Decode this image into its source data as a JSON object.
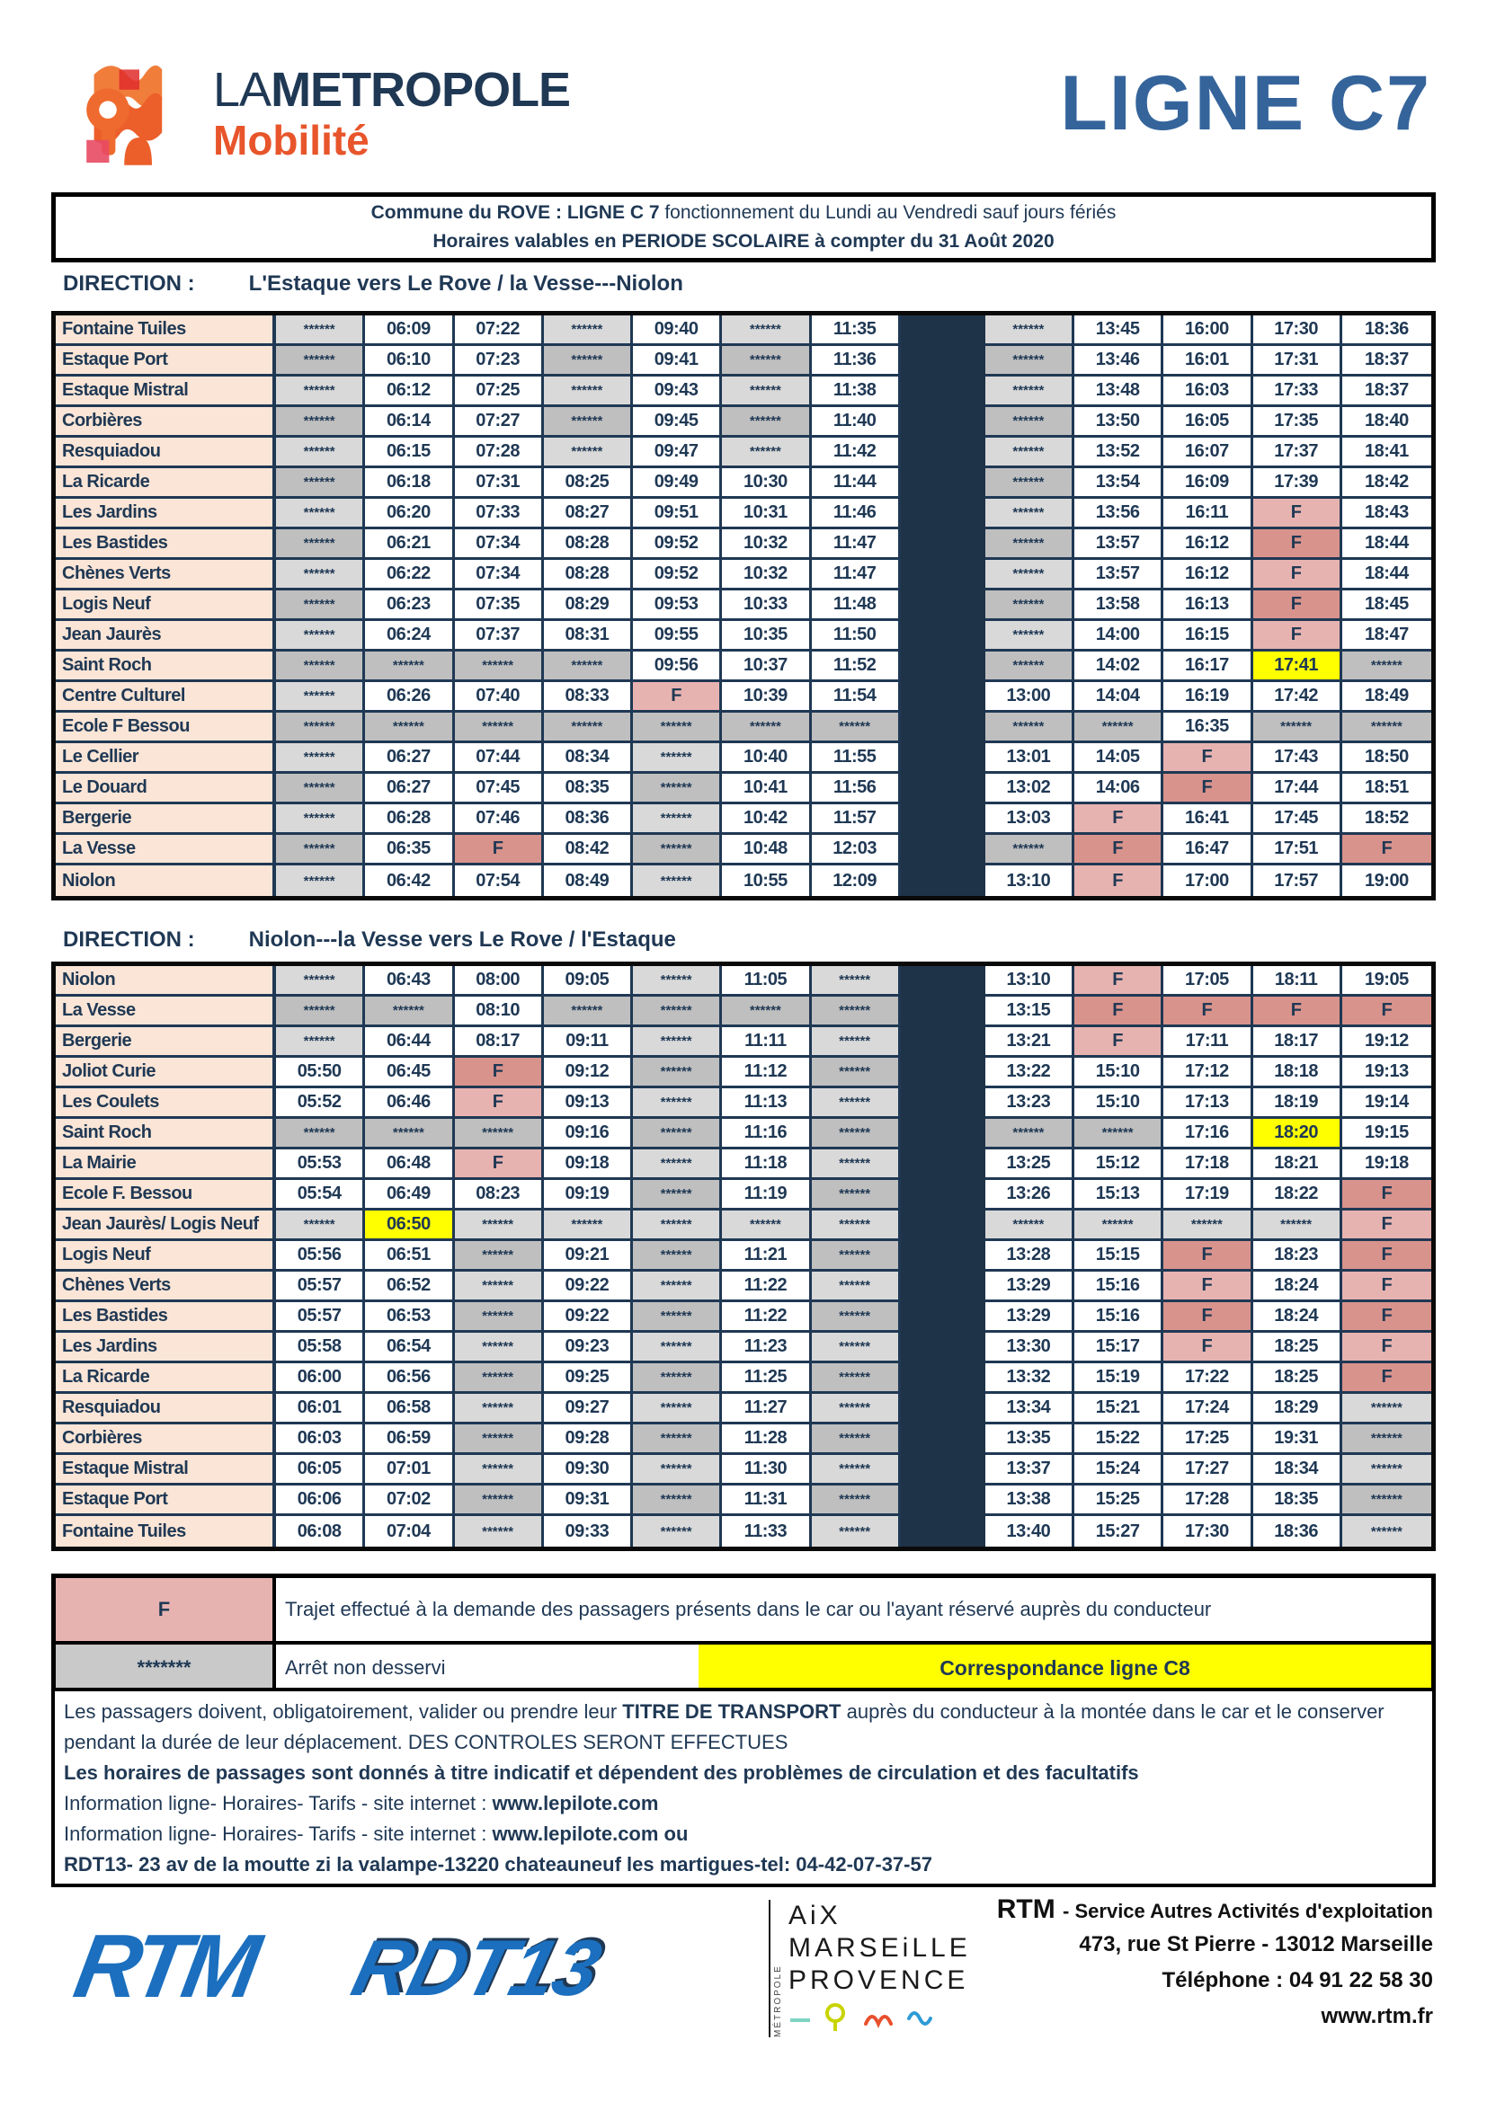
{
  "colors": {
    "navy": "#1f3854",
    "steel": "#35649b",
    "orange": "#e8552b",
    "peach": "#fbe5d6",
    "grayl": "#d9d9d9",
    "grayd": "#bfbfbf",
    "pinkl": "#e7b3b0",
    "pinkd": "#d8938c",
    "yellow": "#ffff00",
    "sep": "#1e3248",
    "logoblue": "#1b6fbe"
  },
  "header": {
    "brand_la": "LA",
    "brand_metropole": "METROPOLE",
    "brand_mobilite": "Mobilité",
    "line_title": "LIGNE C7",
    "banner_line1_bold": "Commune du ROVE  : LIGNE  C 7 ",
    "banner_line1_rest": "fonctionnement du Lundi au Vendredi sauf jours fériés",
    "banner_line2": "Horaires valables en PERIODE SCOLAIRE  à compter du 31 Août 2020"
  },
  "not_served_marker": "******",
  "direction1": {
    "label": "DIRECTION :",
    "route": "L'Estaque  vers  Le Rove  /  la Vesse---Niolon"
  },
  "direction2": {
    "label": "DIRECTION :",
    "route": "Niolon---la Vesse  vers   Le Rove  /  l'Estaque"
  },
  "table1": {
    "rows": [
      {
        "stop": "Fontaine Tuiles",
        "cells": [
          "*",
          "06:09",
          "07:22",
          "*",
          "09:40",
          "*",
          "11:35",
          "*",
          "13:45",
          "16:00",
          "17:30",
          "18:36"
        ]
      },
      {
        "stop": "Estaque Port",
        "cells": [
          "*",
          "06:10",
          "07:23",
          "*",
          "09:41",
          "*",
          "11:36",
          "*",
          "13:46",
          "16:01",
          "17:31",
          "18:37"
        ]
      },
      {
        "stop": "Estaque Mistral",
        "cells": [
          "*",
          "06:12",
          "07:25",
          "*",
          "09:43",
          "*",
          "11:38",
          "*",
          "13:48",
          "16:03",
          "17:33",
          "18:37"
        ]
      },
      {
        "stop": "Corbières",
        "cells": [
          "*",
          "06:14",
          "07:27",
          "*",
          "09:45",
          "*",
          "11:40",
          "*",
          "13:50",
          "16:05",
          "17:35",
          "18:40"
        ]
      },
      {
        "stop": "Resquiadou",
        "cells": [
          "*",
          "06:15",
          "07:28",
          "*",
          "09:47",
          "*",
          "11:42",
          "*",
          "13:52",
          "16:07",
          "17:37",
          "18:41"
        ]
      },
      {
        "stop": "La Ricarde",
        "cells": [
          "*",
          "06:18",
          "07:31",
          "08:25",
          "09:49",
          "10:30",
          "11:44",
          "*",
          "13:54",
          "16:09",
          "17:39",
          "18:42"
        ]
      },
      {
        "stop": "Les Jardins",
        "cells": [
          "*",
          "06:20",
          "07:33",
          "08:27",
          "09:51",
          "10:31",
          "11:46",
          "*",
          "13:56",
          "16:11",
          "F",
          "18:43"
        ]
      },
      {
        "stop": "Les Bastides",
        "cells": [
          "*",
          "06:21",
          "07:34",
          "08:28",
          "09:52",
          "10:32",
          "11:47",
          "*",
          "13:57",
          "16:12",
          "F",
          "18:44"
        ]
      },
      {
        "stop": "Chènes Verts",
        "cells": [
          "*",
          "06:22",
          "07:34",
          "08:28",
          "09:52",
          "10:32",
          "11:47",
          "*",
          "13:57",
          "16:12",
          "F",
          "18:44"
        ]
      },
      {
        "stop": "Logis Neuf",
        "cells": [
          "*",
          "06:23",
          "07:35",
          "08:29",
          "09:53",
          "10:33",
          "11:48",
          "*",
          "13:58",
          "16:13",
          "F",
          "18:45"
        ]
      },
      {
        "stop": "Jean Jaurès",
        "cells": [
          "*",
          "06:24",
          "07:37",
          "08:31",
          "09:55",
          "10:35",
          "11:50",
          "*",
          "14:00",
          "16:15",
          "F",
          "18:47"
        ]
      },
      {
        "stop": "Saint Roch",
        "cells": [
          "*",
          "*",
          "*",
          "*",
          "09:56",
          "10:37",
          "11:52",
          "*",
          "14:02",
          "16:17",
          "Y17:41",
          "*"
        ]
      },
      {
        "stop": "Centre Culturel",
        "cells": [
          "*",
          "06:26",
          "07:40",
          "08:33",
          "F",
          "10:39",
          "11:54",
          "13:00",
          "14:04",
          "16:19",
          "17:42",
          "18:49"
        ]
      },
      {
        "stop": "Ecole F Bessou",
        "cells": [
          "*",
          "*",
          "*",
          "*",
          "*",
          "*",
          "*",
          "*",
          "*",
          "16:35",
          "*",
          "*"
        ]
      },
      {
        "stop": "Le Cellier",
        "cells": [
          "*",
          "06:27",
          "07:44",
          "08:34",
          "*",
          "10:40",
          "11:55",
          "13:01",
          "14:05",
          "F",
          "17:43",
          "18:50"
        ]
      },
      {
        "stop": "Le Douard",
        "cells": [
          "*",
          "06:27",
          "07:45",
          "08:35",
          "*",
          "10:41",
          "11:56",
          "13:02",
          "14:06",
          "F",
          "17:44",
          "18:51"
        ]
      },
      {
        "stop": "Bergerie",
        "cells": [
          "*",
          "06:28",
          "07:46",
          "08:36",
          "*",
          "10:42",
          "11:57",
          "13:03",
          "F",
          "16:41",
          "17:45",
          "18:52"
        ]
      },
      {
        "stop": "La Vesse",
        "cells": [
          "*",
          "06:35",
          "F",
          "08:42",
          "*",
          "10:48",
          "12:03",
          "*",
          "F",
          "16:47",
          "17:51",
          "F"
        ]
      },
      {
        "stop": "Niolon",
        "cells": [
          "*",
          "06:42",
          "07:54",
          "08:49",
          "*",
          "10:55",
          "12:09",
          "13:10",
          "F",
          "17:00",
          "17:57",
          "19:00"
        ]
      }
    ]
  },
  "table2": {
    "rows": [
      {
        "stop": "Niolon",
        "cells": [
          "*",
          "06:43",
          "08:00",
          "09:05",
          "*",
          "11:05",
          "*",
          "13:10",
          "F",
          "17:05",
          "18:11",
          "19:05"
        ]
      },
      {
        "stop": "La Vesse",
        "cells": [
          "*",
          "*",
          "08:10",
          "*",
          "*",
          "*",
          "*",
          "13:15",
          "F",
          "F",
          "F",
          "F"
        ]
      },
      {
        "stop": "Bergerie",
        "cells": [
          "*",
          "06:44",
          "08:17",
          "09:11",
          "*",
          "11:11",
          "*",
          "13:21",
          "F",
          "17:11",
          "18:17",
          "19:12"
        ]
      },
      {
        "stop": "Joliot Curie",
        "cells": [
          "05:50",
          "06:45",
          "F",
          "09:12",
          "*",
          "11:12",
          "*",
          "13:22",
          "15:10",
          "17:12",
          "18:18",
          "19:13"
        ]
      },
      {
        "stop": "Les Coulets",
        "cells": [
          "05:52",
          "06:46",
          "F",
          "09:13",
          "*",
          "11:13",
          "*",
          "13:23",
          "15:10",
          "17:13",
          "18:19",
          "19:14"
        ]
      },
      {
        "stop": "Saint Roch",
        "cells": [
          "*",
          "*",
          "*",
          "09:16",
          "*",
          "11:16",
          "*",
          "*",
          "*",
          "17:16",
          "Y18:20",
          "19:15"
        ]
      },
      {
        "stop": "La Mairie",
        "cells": [
          "05:53",
          "06:48",
          "F",
          "09:18",
          "*",
          "11:18",
          "*",
          "13:25",
          "15:12",
          "17:18",
          "18:21",
          "19:18"
        ]
      },
      {
        "stop": "Ecole F. Bessou",
        "cells": [
          "05:54",
          "06:49",
          "08:23",
          "09:19",
          "*",
          "11:19",
          "*",
          "13:26",
          "15:13",
          "17:19",
          "18:22",
          "F"
        ]
      },
      {
        "stop": "Jean Jaurès/ Logis Neuf",
        "cells": [
          "*",
          "Y06:50",
          "*",
          "*",
          "*",
          "*",
          "*",
          "*",
          "*",
          "*",
          "*",
          "F"
        ]
      },
      {
        "stop": "Logis Neuf",
        "cells": [
          "05:56",
          "06:51",
          "*",
          "09:21",
          "*",
          "11:21",
          "*",
          "13:28",
          "15:15",
          "F",
          "18:23",
          "F"
        ]
      },
      {
        "stop": "Chènes Verts",
        "cells": [
          "05:57",
          "06:52",
          "*",
          "09:22",
          "*",
          "11:22",
          "*",
          "13:29",
          "15:16",
          "F",
          "18:24",
          "F"
        ]
      },
      {
        "stop": "Les Bastides",
        "cells": [
          "05:57",
          "06:53",
          "*",
          "09:22",
          "*",
          "11:22",
          "*",
          "13:29",
          "15:16",
          "F",
          "18:24",
          "F"
        ]
      },
      {
        "stop": "Les Jardins",
        "cells": [
          "05:58",
          "06:54",
          "*",
          "09:23",
          "*",
          "11:23",
          "*",
          "13:30",
          "15:17",
          "F",
          "18:25",
          "F"
        ]
      },
      {
        "stop": "La Ricarde",
        "cells": [
          "06:00",
          "06:56",
          "*",
          "09:25",
          "*",
          "11:25",
          "*",
          "13:32",
          "15:19",
          "17:22",
          "18:25",
          "F"
        ]
      },
      {
        "stop": "Resquiadou",
        "cells": [
          "06:01",
          "06:58",
          "*",
          "09:27",
          "*",
          "11:27",
          "*",
          "13:34",
          "15:21",
          "17:24",
          "18:29",
          "*"
        ]
      },
      {
        "stop": "Corbières",
        "cells": [
          "06:03",
          "06:59",
          "*",
          "09:28",
          "*",
          "11:28",
          "*",
          "13:35",
          "15:22",
          "17:25",
          "19:31",
          "*"
        ]
      },
      {
        "stop": "Estaque Mistral",
        "cells": [
          "06:05",
          "07:01",
          "*",
          "09:30",
          "*",
          "11:30",
          "*",
          "13:37",
          "15:24",
          "17:27",
          "18:34",
          "*"
        ]
      },
      {
        "stop": "Estaque Port",
        "cells": [
          "06:06",
          "07:02",
          "*",
          "09:31",
          "*",
          "11:31",
          "*",
          "13:38",
          "15:25",
          "17:28",
          "18:35",
          "*"
        ]
      },
      {
        "stop": "Fontaine Tuiles",
        "cells": [
          "06:08",
          "07:04",
          "*",
          "09:33",
          "*",
          "11:33",
          "*",
          "13:40",
          "15:27",
          "17:30",
          "18:36",
          "*"
        ]
      }
    ]
  },
  "legend": {
    "f_symbol": "F",
    "f_text": "Trajet effectué à la demande des passagers présents dans le car ou l'ayant réservé auprès du conducteur",
    "star_symbol": "*******",
    "star_text": "Arrêt non desservi",
    "yellow_text": "Correspondance ligne C8"
  },
  "notes": [
    [
      {
        "t": "Les passagers doivent, obligatoirement, valider ou prendre leur ",
        "b": false
      },
      {
        "t": "TITRE DE TRANSPORT",
        "b": true
      },
      {
        "t": " auprès du conducteur à la montée dans le car et le conserver pendant la durée de leur déplacement.  DES CONTROLES SERONT EFFECTUES",
        "b": false
      }
    ],
    [
      {
        "t": "Les horaires de passages sont donnés à titre indicatif et dépendent des problèmes de circulation et des facultatifs",
        "b": true
      }
    ],
    [
      {
        "t": "Information ligne- Horaires- Tarifs - site internet : ",
        "b": false
      },
      {
        "t": "www.lepilote.com",
        "b": true
      }
    ],
    [
      {
        "t": "Information ligne- Horaires- Tarifs -  site internet : ",
        "b": false
      },
      {
        "t": "www.lepilote.com  ou",
        "b": true
      }
    ],
    [
      {
        "t": "RDT13- 23 av de la moutte zi la valampe-13220 chateauneuf les martigues-tel: 04-42-07-37-57",
        "b": true
      }
    ]
  ],
  "footer": {
    "rtm_logo": "RTM",
    "rdt13_logo": "RDT13",
    "amp_vertical": "MÉTROPOLE",
    "amp_lines": [
      "AiX",
      "MARSEiLLE",
      "PROVENCE"
    ],
    "rtm_name": "RTM ",
    "rtm_rest": "- Service Autres Activités d'exploitation",
    "address": "473, rue St Pierre - 13012 Marseille",
    "phone": "Téléphone : 04 91 22 58 30",
    "web": "www.rtm.fr"
  }
}
